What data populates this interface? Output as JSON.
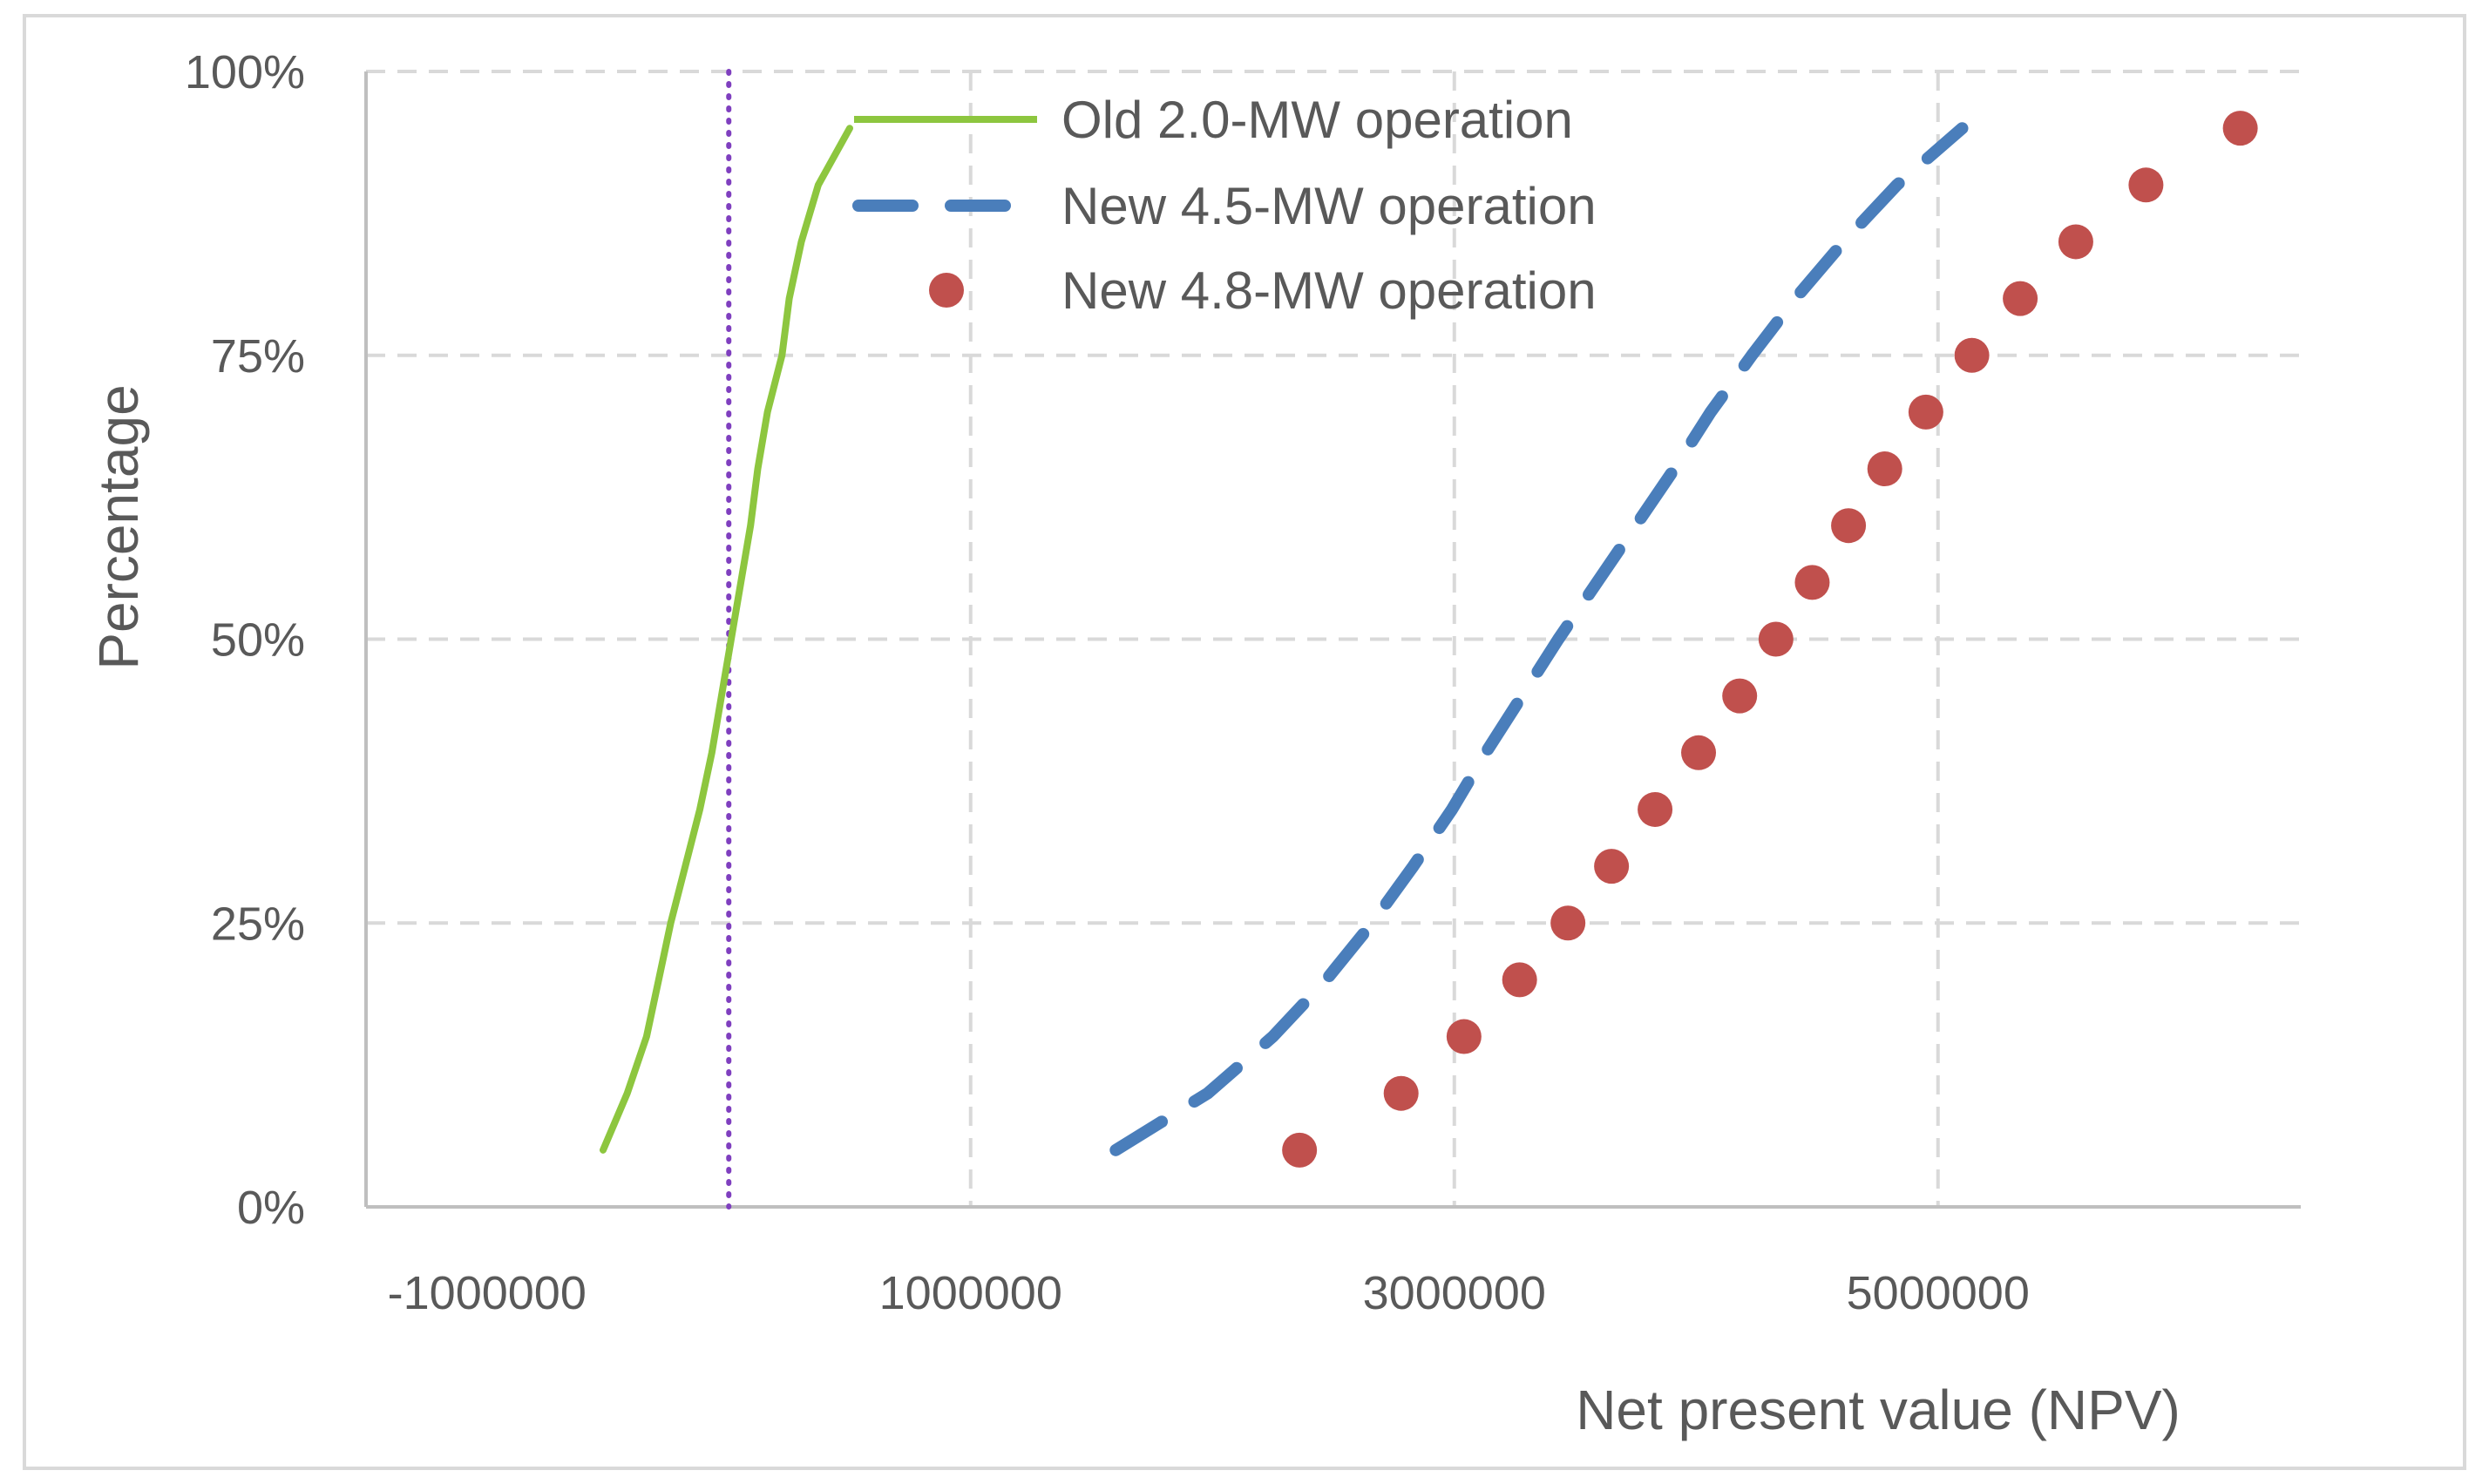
{
  "chart_data": {
    "type": "line",
    "title": "",
    "xlabel": "Net present value (NPV)",
    "ylabel": "Percentage",
    "xlim": [
      -1500000,
      6500000
    ],
    "ylim": [
      0,
      100
    ],
    "x_ticks": [
      -1000000,
      1000000,
      3000000,
      5000000
    ],
    "x_tick_labels": [
      "-1000000",
      "1000000",
      "3000000",
      "5000000"
    ],
    "y_ticks": [
      0,
      25,
      50,
      75,
      100
    ],
    "y_tick_labels": [
      "0%",
      "25%",
      "50%",
      "75%",
      "100%"
    ],
    "x_gridlines": [
      1000000,
      3000000,
      5000000
    ],
    "grid": true,
    "legend_position": "top-center",
    "reference_line": {
      "x": 0,
      "style": "dotted",
      "color": "#7F3FBF"
    },
    "series": [
      {
        "name": "Old 2.0-MW operation",
        "style": "solid",
        "color": "#8DC63F",
        "points": [
          [
            -520000,
            5
          ],
          [
            -420000,
            10
          ],
          [
            -340000,
            15
          ],
          [
            -290000,
            20
          ],
          [
            -240000,
            25
          ],
          [
            -180000,
            30
          ],
          [
            -120000,
            35
          ],
          [
            -70000,
            40
          ],
          [
            -30000,
            45
          ],
          [
            10000,
            50
          ],
          [
            50000,
            55
          ],
          [
            90000,
            60
          ],
          [
            120000,
            65
          ],
          [
            160000,
            70
          ],
          [
            220000,
            75
          ],
          [
            250000,
            80
          ],
          [
            300000,
            85
          ],
          [
            370000,
            90
          ],
          [
            500000,
            95
          ]
        ]
      },
      {
        "name": "New 4.5-MW operation",
        "style": "dashed",
        "color": "#4A7EBB",
        "points": [
          [
            1600000,
            5
          ],
          [
            1980000,
            10
          ],
          [
            2250000,
            15
          ],
          [
            2470000,
            20
          ],
          [
            2660000,
            25
          ],
          [
            2830000,
            30
          ],
          [
            2990000,
            35
          ],
          [
            3130000,
            40
          ],
          [
            3280000,
            45
          ],
          [
            3430000,
            50
          ],
          [
            3590000,
            55
          ],
          [
            3750000,
            60
          ],
          [
            3910000,
            65
          ],
          [
            4060000,
            70
          ],
          [
            4230000,
            75
          ],
          [
            4410000,
            80
          ],
          [
            4610000,
            85
          ],
          [
            4830000,
            90
          ],
          [
            5100000,
            95
          ]
        ]
      },
      {
        "name": "New 4.8-MW operation",
        "style": "markers",
        "color": "#C0504D",
        "points": [
          [
            2360000,
            5
          ],
          [
            2780000,
            10
          ],
          [
            3040000,
            15
          ],
          [
            3270000,
            20
          ],
          [
            3470000,
            25
          ],
          [
            3650000,
            30
          ],
          [
            3830000,
            35
          ],
          [
            4010000,
            40
          ],
          [
            4180000,
            45
          ],
          [
            4330000,
            50
          ],
          [
            4480000,
            55
          ],
          [
            4630000,
            60
          ],
          [
            4780000,
            65
          ],
          [
            4950000,
            70
          ],
          [
            5140000,
            75
          ],
          [
            5340000,
            80
          ],
          [
            5570000,
            85
          ],
          [
            5860000,
            90
          ],
          [
            6250000,
            95
          ]
        ]
      }
    ]
  }
}
